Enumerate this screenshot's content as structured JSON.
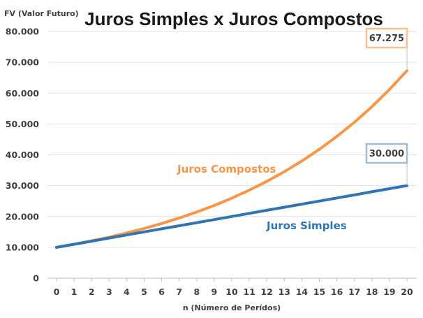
{
  "chart_data": {
    "type": "line",
    "title": "Juros Simples x Juros Compostos",
    "xlabel": "n (Número de Perídos)",
    "ylabel": "FV (Valor Futuro)",
    "x": [
      0,
      1,
      2,
      3,
      4,
      5,
      6,
      7,
      8,
      9,
      10,
      11,
      12,
      13,
      14,
      15,
      16,
      17,
      18,
      19,
      20
    ],
    "y_ticks": [
      "0",
      "10.000",
      "20.000",
      "30.000",
      "40.000",
      "50.000",
      "60.000",
      "70.000",
      "80.000"
    ],
    "ylim": [
      0,
      80000
    ],
    "grid": true,
    "series": [
      {
        "name": "Juros Compostos",
        "color": "#f79646",
        "values": [
          10000,
          11000,
          12100,
          13310,
          14641,
          16105,
          17716,
          19487,
          21436,
          23579,
          25937,
          28531,
          31384,
          34523,
          37975,
          41772,
          45950,
          50545,
          55599,
          61159,
          67275
        ],
        "callout": "67.275",
        "callout_border": "#fac090"
      },
      {
        "name": "Juros Simples",
        "color": "#2e75b6",
        "values": [
          10000,
          11000,
          12000,
          13000,
          14000,
          15000,
          16000,
          17000,
          18000,
          19000,
          20000,
          21000,
          22000,
          23000,
          24000,
          25000,
          26000,
          27000,
          28000,
          29000,
          30000
        ],
        "callout": "30.000",
        "callout_border": "#a5bccf"
      }
    ]
  }
}
